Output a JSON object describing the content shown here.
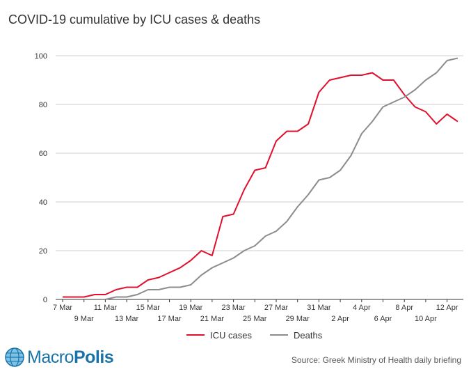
{
  "title": "COVID-19 cumulative by ICU cases & deaths",
  "source": "Source: Greek Ministry of Health daily briefing",
  "logo": {
    "part1": "Macro",
    "part2": "Polis"
  },
  "colors": {
    "icu": "#e0102d",
    "deaths": "#8c8c8c",
    "grid": "#cccccc",
    "axis": "#333333"
  },
  "chart_data": {
    "type": "line",
    "ylim": [
      0,
      100
    ],
    "yticks": [
      0,
      20,
      40,
      60,
      80,
      100
    ],
    "x_tick_labels": [
      {
        "day": 0,
        "label": "7 Mar"
      },
      {
        "day": 2,
        "label": "9 Mar"
      },
      {
        "day": 4,
        "label": "11 Mar"
      },
      {
        "day": 6,
        "label": "13 Mar"
      },
      {
        "day": 8,
        "label": "15 Mar"
      },
      {
        "day": 10,
        "label": "17 Mar"
      },
      {
        "day": 12,
        "label": "19 Mar"
      },
      {
        "day": 14,
        "label": "21 Mar"
      },
      {
        "day": 16,
        "label": "23 Mar"
      },
      {
        "day": 18,
        "label": "25 Mar"
      },
      {
        "day": 20,
        "label": "27 Mar"
      },
      {
        "day": 22,
        "label": "29 Mar"
      },
      {
        "day": 24,
        "label": "31 Mar"
      },
      {
        "day": 26,
        "label": "2 Apr"
      },
      {
        "day": 28,
        "label": "4 Apr"
      },
      {
        "day": 30,
        "label": "6 Apr"
      },
      {
        "day": 32,
        "label": "8 Apr"
      },
      {
        "day": 34,
        "label": "10 Apr"
      },
      {
        "day": 36,
        "label": "12 Apr"
      }
    ],
    "x": [
      "7 Mar",
      "8 Mar",
      "9 Mar",
      "10 Mar",
      "11 Mar",
      "12 Mar",
      "13 Mar",
      "14 Mar",
      "15 Mar",
      "16 Mar",
      "17 Mar",
      "18 Mar",
      "19 Mar",
      "20 Mar",
      "21 Mar",
      "22 Mar",
      "23 Mar",
      "24 Mar",
      "25 Mar",
      "26 Mar",
      "27 Mar",
      "28 Mar",
      "29 Mar",
      "30 Mar",
      "31 Mar",
      "1 Apr",
      "2 Apr",
      "3 Apr",
      "4 Apr",
      "5 Apr",
      "6 Apr",
      "7 Apr",
      "8 Apr",
      "9 Apr",
      "10 Apr",
      "11 Apr",
      "12 Apr",
      "13 Apr"
    ],
    "series": [
      {
        "name": "ICU cases",
        "color": "#e0102d",
        "values": [
          1,
          1,
          1,
          2,
          2,
          4,
          5,
          5,
          8,
          9,
          11,
          13,
          16,
          20,
          18,
          34,
          35,
          45,
          53,
          54,
          65,
          69,
          69,
          72,
          85,
          90,
          91,
          92,
          92,
          93,
          90,
          90,
          84,
          79,
          77,
          72,
          76,
          73
        ]
      },
      {
        "name": "Deaths",
        "color": "#8c8c8c",
        "values": [
          null,
          null,
          null,
          null,
          0,
          1,
          1,
          2,
          4,
          4,
          5,
          5,
          6,
          10,
          13,
          15,
          17,
          20,
          22,
          26,
          28,
          32,
          38,
          43,
          49,
          50,
          53,
          59,
          68,
          73,
          79,
          81,
          83,
          86,
          90,
          93,
          98,
          99
        ]
      }
    ],
    "legend_position": "bottom-center",
    "grid": "horizontal"
  }
}
